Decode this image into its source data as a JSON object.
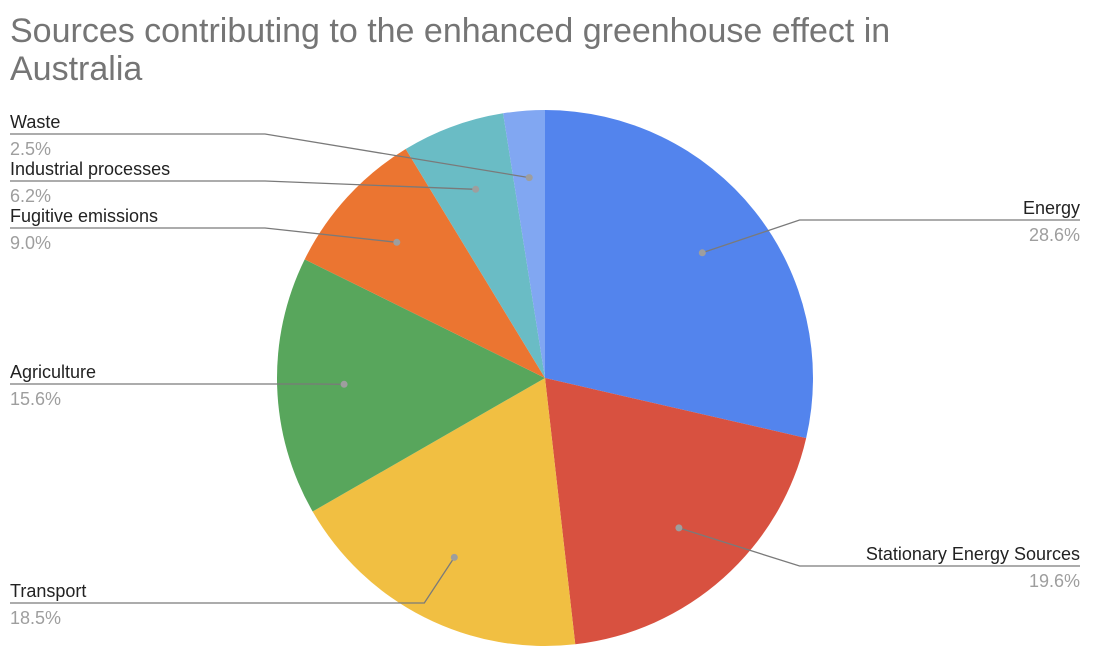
{
  "chart_data": {
    "type": "pie",
    "title_lines": [
      "Sources contributing to the enhanced greenhouse effect in",
      "Australia"
    ],
    "legend": "labeled slices",
    "slices": [
      {
        "label": "Energy",
        "value": 28.6,
        "display": "28.6%",
        "color": "#5384ED"
      },
      {
        "label": "Stationary Energy Sources",
        "value": 19.6,
        "display": "19.6%",
        "color": "#D85140"
      },
      {
        "label": "Transport",
        "value": 18.5,
        "display": "18.5%",
        "color": "#F1BF42"
      },
      {
        "label": "Agriculture",
        "value": 15.6,
        "display": "15.6%",
        "color": "#58A65C"
      },
      {
        "label": "Fugitive emissions",
        "value": 9.0,
        "display": "9.0%",
        "color": "#EB7531"
      },
      {
        "label": "Industrial processes",
        "value": 6.2,
        "display": "6.2%",
        "color": "#6ABCC5"
      },
      {
        "label": "Waste",
        "value": 2.5,
        "display": "2.5%",
        "color": "#81A7F2"
      }
    ]
  }
}
